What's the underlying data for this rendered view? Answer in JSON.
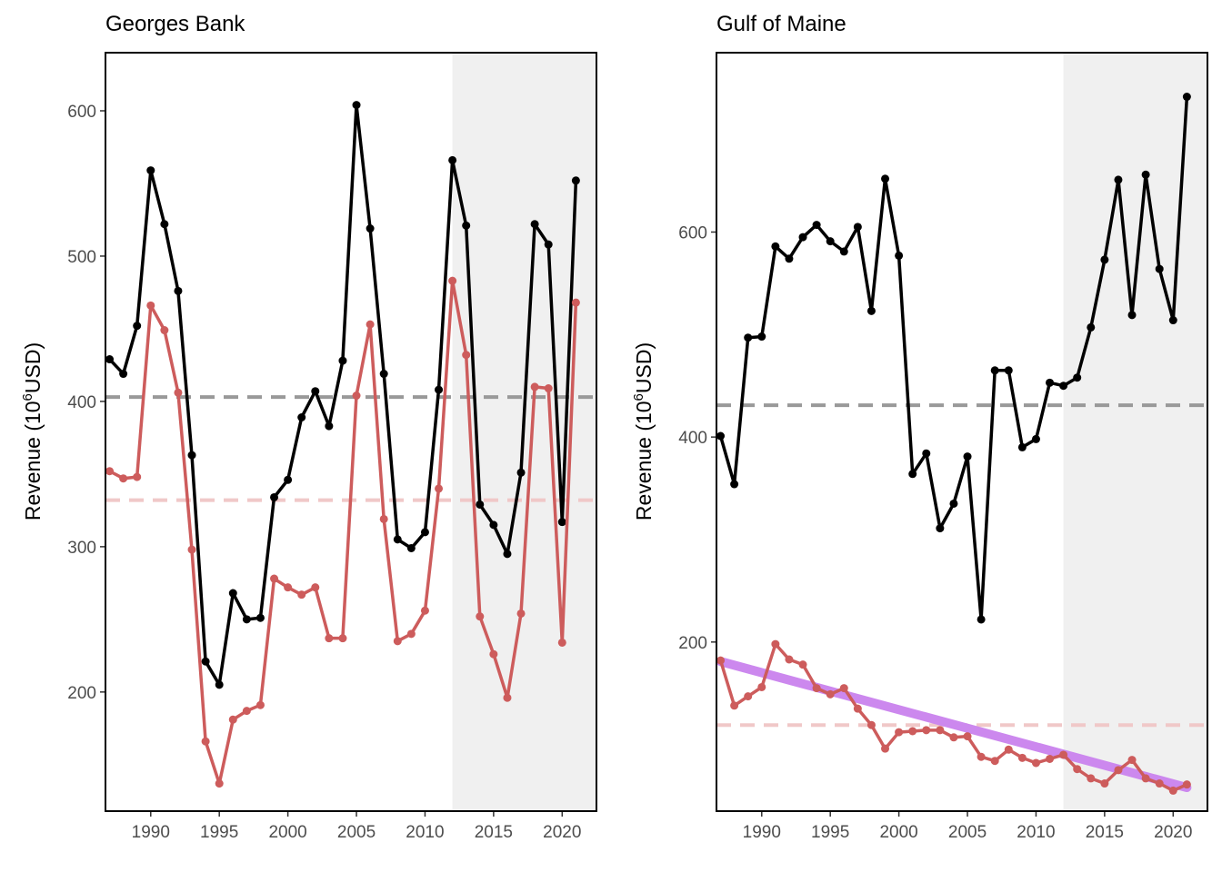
{
  "chart_data": [
    {
      "type": "line",
      "title": "Georges Bank",
      "ylabel": "Revenue (10^6USD)",
      "ylabel_parts": {
        "base": "Revenue (10",
        "exp": "6",
        "unit": "USD)"
      },
      "xlim": [
        1986.7,
        2022.5
      ],
      "ylim": [
        118,
        640
      ],
      "xticks": [
        1990,
        1995,
        2000,
        2005,
        2010,
        2015,
        2020
      ],
      "yticks": [
        200,
        300,
        400,
        500,
        600
      ],
      "shaded_x": [
        2012,
        2022.5
      ],
      "colors": {
        "total": "#000000",
        "series2": "#cd5c5c",
        "total_ref": "#999999",
        "series2_ref": "#f0c8c8",
        "shade": "#f0f0f0"
      },
      "reference_lines": {
        "total": 403,
        "series2": 332
      },
      "x": [
        1987,
        1988,
        1989,
        1990,
        1991,
        1992,
        1993,
        1994,
        1995,
        1996,
        1997,
        1998,
        1999,
        2000,
        2001,
        2002,
        2003,
        2004,
        2005,
        2006,
        2007,
        2008,
        2009,
        2010,
        2011,
        2012,
        2013,
        2014,
        2015,
        2016,
        2017,
        2018,
        2019,
        2020,
        2021
      ],
      "series": [
        {
          "values": [
            429,
            419,
            452,
            559,
            522,
            476,
            363,
            221,
            205,
            268,
            250,
            251,
            334,
            346,
            389,
            407,
            383,
            428,
            604,
            519,
            419,
            305,
            299,
            310,
            408,
            566,
            521,
            329,
            315,
            295,
            351,
            522,
            508,
            317,
            552
          ]
        },
        {
          "values": [
            352,
            347,
            348,
            466,
            449,
            406,
            298,
            166,
            137,
            181,
            187,
            191,
            278,
            272,
            267,
            272,
            237,
            237,
            404,
            453,
            319,
            235,
            240,
            256,
            340,
            483,
            432,
            252,
            226,
            196,
            254,
            410,
            409,
            234,
            468
          ]
        }
      ]
    },
    {
      "type": "line",
      "title": "Gulf of Maine",
      "ylabel": "Revenue (10^6USD)",
      "ylabel_parts": {
        "base": "Revenue (10",
        "exp": "6",
        "unit": "USD)"
      },
      "xlim": [
        1986.7,
        2022.5
      ],
      "ylim": [
        35,
        775
      ],
      "xticks": [
        1990,
        1995,
        2000,
        2005,
        2010,
        2015,
        2020
      ],
      "yticks": [
        200,
        400,
        600
      ],
      "shaded_x": [
        2012,
        2022.5
      ],
      "colors": {
        "total": "#000000",
        "series2": "#cd5c5c",
        "trend": "#cc88ee",
        "total_ref": "#999999",
        "series2_ref": "#f0c8c8",
        "shade": "#f0f0f0"
      },
      "reference_lines": {
        "total": 431,
        "series2": 119
      },
      "x": [
        1987,
        1988,
        1989,
        1990,
        1991,
        1992,
        1993,
        1994,
        1995,
        1996,
        1997,
        1998,
        1999,
        2000,
        2001,
        2002,
        2003,
        2004,
        2005,
        2006,
        2007,
        2008,
        2009,
        2010,
        2011,
        2012,
        2013,
        2014,
        2015,
        2016,
        2017,
        2018,
        2019,
        2020,
        2021
      ],
      "trend": {
        "x": [
          1987,
          2021
        ],
        "values": [
          181,
          58
        ]
      },
      "series": [
        {
          "values": [
            401,
            354,
            497,
            498,
            586,
            574,
            595,
            607,
            591,
            581,
            605,
            523,
            652,
            577,
            364,
            384,
            311,
            335,
            381,
            222,
            465,
            465,
            390,
            398,
            453,
            450,
            458,
            507,
            573,
            651,
            519,
            656,
            564,
            514,
            732
          ]
        },
        {
          "values": [
            182,
            138,
            147,
            156,
            198,
            183,
            178,
            155,
            149,
            155,
            135,
            119,
            96,
            112,
            113,
            114,
            114,
            107,
            108,
            88,
            84,
            95,
            87,
            82,
            86,
            90,
            76,
            67,
            62,
            75,
            85,
            67,
            62,
            55,
            61
          ]
        }
      ]
    }
  ]
}
